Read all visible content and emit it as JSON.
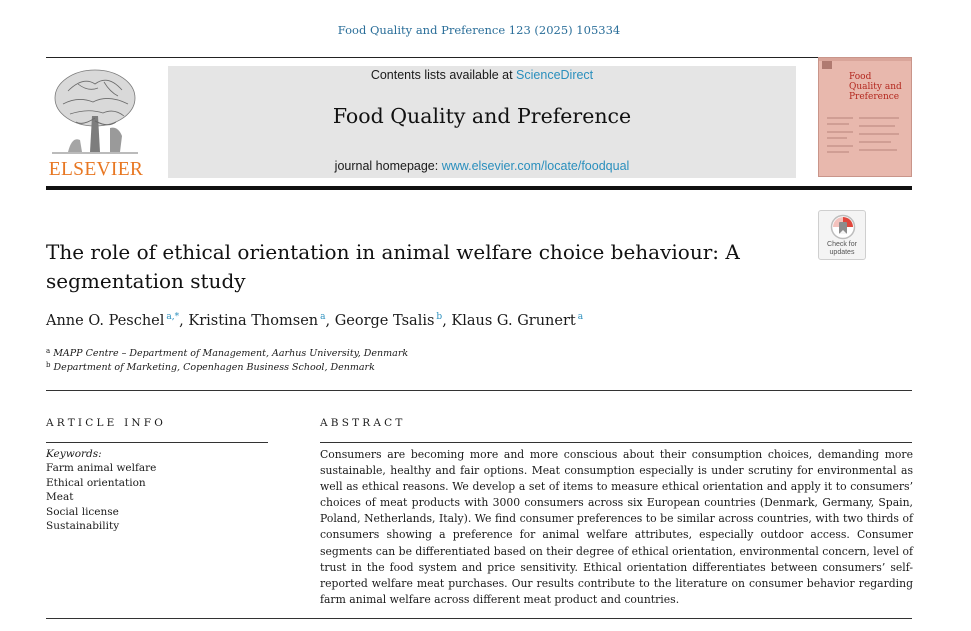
{
  "citation": "Food Quality and Preference 123 (2025) 105334",
  "publisher": {
    "name": "ELSEVIER",
    "logo_icon": "elsevier-tree-icon"
  },
  "journal_header": {
    "contents_prefix": "Contents lists available at ",
    "contents_link": "ScienceDirect",
    "journal_name": "Food Quality and Preference",
    "homepage_prefix": "journal homepage: ",
    "homepage_link": "www.elsevier.com/locate/foodqual"
  },
  "cover": {
    "title": "Food Quality and Preference"
  },
  "check_updates": {
    "icon": "crossmark-icon",
    "label_line1": "Check for",
    "label_line2": "updates"
  },
  "article": {
    "title": "The role of ethical orientation in animal welfare choice behaviour: A segmentation study",
    "authors": [
      {
        "name": "Anne O. Peschel",
        "sup": "a,*"
      },
      {
        "name": "Kristina Thomsen",
        "sup": "a"
      },
      {
        "name": "George Tsalis",
        "sup": "b"
      },
      {
        "name": "Klaus G. Grunert",
        "sup": "a"
      }
    ],
    "affiliations": [
      {
        "mark": "a",
        "text": "MAPP Centre – Department of Management, Aarhus University, Denmark"
      },
      {
        "mark": "b",
        "text": "Department of Marketing, Copenhagen Business School, Denmark"
      }
    ]
  },
  "article_info": {
    "heading": "ARTICLE INFO",
    "keywords_label": "Keywords:",
    "keywords": [
      "Farm animal welfare",
      "Ethical orientation",
      "Meat",
      "Social license",
      "Sustainability"
    ]
  },
  "abstract": {
    "heading": "ABSTRACT",
    "text": "Consumers are becoming more and more conscious about their consumption choices, demanding more sustainable, healthy and fair options. Meat consumption especially is under scrutiny for environmental as well as ethical reasons. We develop a set of items to measure ethical orientation and apply it to consumers’ choices of meat products with 3000 consumers across six European countries (Denmark, Germany, Spain, Poland, Netherlands, Italy). We find consumer preferences to be similar across countries, with two thirds of consumers showing a preference for animal welfare attributes, especially outdoor access. Consumer segments can be differentiated based on their degree of ethical orientation, environmental concern, level of trust in the food system and price sensitivity. Ethical orientation differentiates between consumers’ self-reported welfare meat purchases. Our results contribute to the literature on consumer behavior regarding farm animal welfare across different meat product and countries."
  },
  "colors": {
    "link": "#2a8fbd",
    "elsevier_orange": "#e87722",
    "cover_bg": "#e8b8ad",
    "header_box": "#e5e5e5"
  }
}
